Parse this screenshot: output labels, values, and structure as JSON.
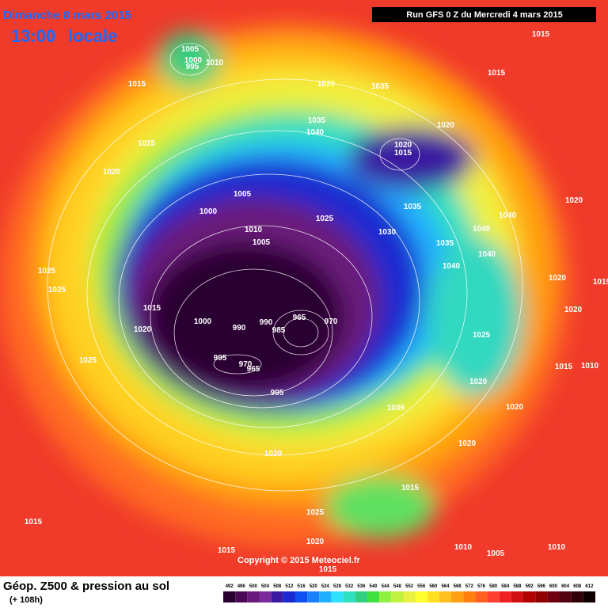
{
  "header": {
    "date": "Dimanche 8 mars 2015",
    "time": "13:00",
    "time_suffix": "locale",
    "run": "Run GFS 0 Z du Mercredi 4 mars 2015"
  },
  "footer": {
    "title": "Géop. Z500 & pression au sol",
    "lead": "(+ 108h)",
    "copyright": "Copyright © 2015 Meteociel.fr"
  },
  "pressure_labels": [
    "1015",
    "1005",
    "1000",
    "995",
    "1010",
    "1015",
    "1020",
    "1035",
    "1015",
    "1025",
    "1035",
    "1040",
    "1020",
    "1020",
    "1015",
    "1020",
    "1005",
    "1000",
    "1025",
    "1035",
    "1020",
    "1040",
    "1010",
    "1005",
    "1030",
    "1040",
    "1035",
    "1040",
    "1025",
    "1040",
    "1020",
    "1015",
    "1025",
    "1015",
    "1020",
    "1000",
    "965",
    "970",
    "990",
    "990",
    "985",
    "1020",
    "1025",
    "995",
    "970",
    "965",
    "1025",
    "1015",
    "1010",
    "1020",
    "995",
    "1035",
    "1020",
    "1020",
    "1020",
    "1015",
    "1025",
    "1015",
    "1010",
    "1020",
    "1005",
    "1010",
    "1015",
    "1015"
  ],
  "legend": {
    "values": [
      492,
      496,
      500,
      504,
      508,
      512,
      516,
      520,
      524,
      528,
      532,
      536,
      540,
      544,
      548,
      552,
      556,
      560,
      564,
      568,
      572,
      576,
      580,
      584,
      588,
      592,
      596,
      600,
      604,
      608,
      612
    ],
    "colors": [
      "#2a0030",
      "#4a0a55",
      "#6a1a7a",
      "#7a2a9a",
      "#3a1aa0",
      "#1a2ad0",
      "#1050f0",
      "#1a80ff",
      "#20b0ff",
      "#30e0ff",
      "#30e0c0",
      "#30d080",
      "#40e040",
      "#90f040",
      "#c0f040",
      "#e8f040",
      "#ffff30",
      "#ffe020",
      "#ffc020",
      "#ffa010",
      "#ff8010",
      "#ff6020",
      "#ff4030",
      "#f02020",
      "#d01010",
      "#b00000",
      "#900000",
      "#700010",
      "#500010",
      "#300008",
      "#100000"
    ]
  }
}
